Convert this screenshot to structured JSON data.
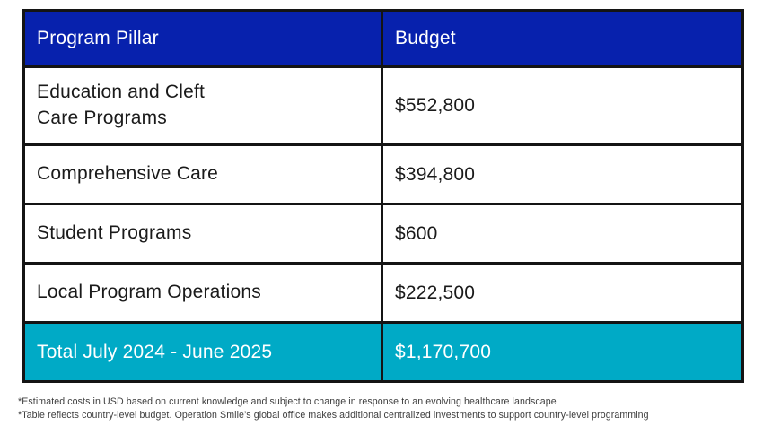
{
  "table": {
    "header": {
      "pillar_label": "Program Pillar",
      "budget_label": "Budget"
    },
    "rows": [
      {
        "pillar": "Education and Cleft\nCare Programs",
        "budget": "$552,800"
      },
      {
        "pillar": "Comprehensive Care",
        "budget": "$394,800"
      },
      {
        "pillar": "Student Programs",
        "budget": "$600"
      },
      {
        "pillar": "Local Program Operations",
        "budget": "$222,500"
      }
    ],
    "total": {
      "label": "Total July 2024 - June 2025",
      "budget": "$1,170,700"
    }
  },
  "footnotes": [
    "*Estimated costs in USD based on current knowledge and subject to change in response to an evolving healthcare landscape",
    "*Table reflects country-level budget. Operation Smile’s global office makes additional centralized investments to support country-level programming"
  ],
  "colors": {
    "header_bg": "#0721ad",
    "total_bg": "#00aac6",
    "border": "#141414",
    "header_text": "#ffffff",
    "total_text": "#ffffff",
    "body_text": "#1a1a1a",
    "footnote_text": "#3d3d3d"
  },
  "chart_data": {
    "type": "table",
    "title": "",
    "columns": [
      "Program Pillar",
      "Budget"
    ],
    "rows": [
      [
        "Education and Cleft Care Programs",
        552800
      ],
      [
        "Comprehensive Care",
        394800
      ],
      [
        "Student Programs",
        600
      ],
      [
        "Local Program Operations",
        222500
      ]
    ],
    "total_row": [
      "Total July 2024 - June 2025",
      1170700
    ],
    "currency": "USD"
  }
}
